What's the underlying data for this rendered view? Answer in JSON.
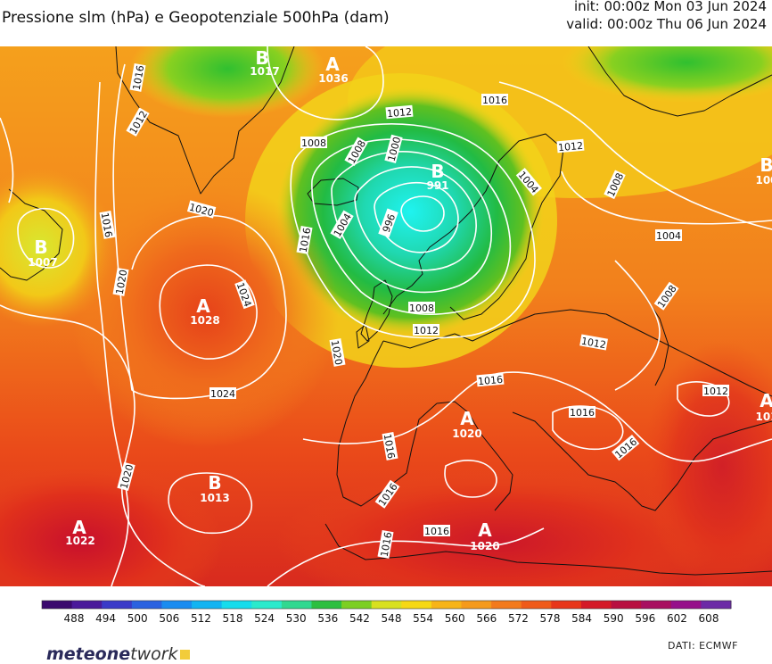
{
  "header": {
    "title": "Pressione slm (hPa) e Geopotenziale 500hPa (dam)",
    "init": "init: 00:00z Mon 03 Jun 2024",
    "valid": "valid: 00:00z Thu 06 Jun 2024"
  },
  "map": {
    "centers": [
      {
        "kind": "B",
        "value": "1017"
      },
      {
        "kind": "A",
        "value": "1036"
      },
      {
        "kind": "B",
        "value": "991"
      },
      {
        "kind": "B",
        "value": "1007"
      },
      {
        "kind": "A",
        "value": "1028"
      },
      {
        "kind": "B",
        "value": "1013"
      },
      {
        "kind": "A",
        "value": "1022"
      },
      {
        "kind": "A",
        "value": "1020"
      },
      {
        "kind": "A",
        "value": "1020"
      },
      {
        "kind": "B",
        "value": "100"
      },
      {
        "kind": "A",
        "value": "101"
      }
    ],
    "isobar_labels": [
      "1016",
      "1012",
      "1016",
      "1012",
      "1008",
      "1000",
      "1020",
      "1008",
      "1004",
      "1004",
      "996",
      "1016",
      "1012",
      "1008",
      "1004",
      "1008",
      "1012",
      "1020",
      "1024",
      "1020",
      "1024",
      "1020",
      "1016",
      "1016",
      "1016",
      "1016",
      "1016",
      "1016",
      "1012",
      "1012",
      "1016",
      "1016",
      "1008"
    ]
  },
  "colorbar": {
    "ticks": [
      "488",
      "494",
      "500",
      "506",
      "512",
      "518",
      "524",
      "530",
      "536",
      "542",
      "548",
      "554",
      "560",
      "566",
      "572",
      "578",
      "584",
      "590",
      "596",
      "602",
      "608"
    ],
    "colors": [
      "#3b0a6e",
      "#4a1a9a",
      "#3a3ac8",
      "#2a62e0",
      "#1a8cf0",
      "#12b4f2",
      "#16dcec",
      "#2aeacc",
      "#30d890",
      "#2cbf40",
      "#7ccf22",
      "#d8e020",
      "#f6d814",
      "#f7b418",
      "#f59a1c",
      "#f37a1c",
      "#ef5a1a",
      "#e8361a",
      "#d41a28",
      "#b81040",
      "#a81060",
      "#96108a",
      "#6c2aa6"
    ]
  },
  "footer": {
    "logo_main": "meteone",
    "logo_accent": "twork",
    "credit": "DATI:  ECMWF"
  },
  "colors": {
    "ocean_deep": "#e8431a",
    "trough_core": "#18e0d0",
    "ridge": "#f48a1c"
  }
}
